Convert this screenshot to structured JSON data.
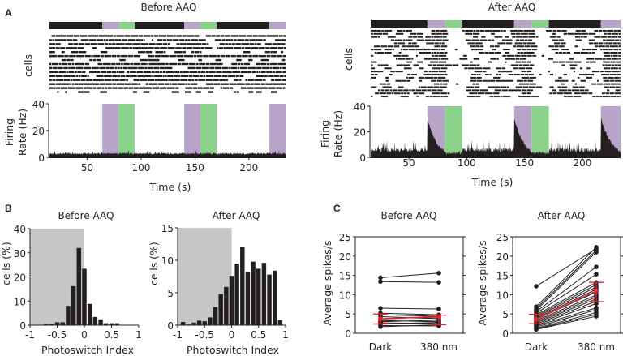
{
  "panel_labels": {
    "a": "A",
    "b": "B",
    "c": "C"
  },
  "colors": {
    "uv": "#b7a4c8",
    "green": "#8bd38b",
    "dark_bar": "#231f20",
    "gray_region": "#c7c7c7",
    "mean_red": "#e8202a",
    "ink": "#231f20"
  },
  "chart_data": [
    {
      "id": "A-before",
      "type": "area",
      "title": "Before AAQ",
      "raster_ylabel": "cells",
      "ylabel": "Firing Rate (Hz)",
      "ylabel_lines": [
        "Firing",
        "Rate (Hz)"
      ],
      "xlabel": "Time (s)",
      "xlim": [
        15,
        234
      ],
      "ylim": [
        0,
        40
      ],
      "xticks": [
        50,
        100,
        150,
        200
      ],
      "yticks": [
        0,
        20,
        40
      ],
      "light_protocol": [
        {
          "state": "dark",
          "start": 15,
          "end": 64
        },
        {
          "state": "380 nm",
          "start": 64,
          "end": 79
        },
        {
          "state": "500 nm",
          "start": 79,
          "end": 94
        },
        {
          "state": "dark",
          "start": 94,
          "end": 140
        },
        {
          "state": "380 nm",
          "start": 140,
          "end": 155
        },
        {
          "state": "500 nm",
          "start": 155,
          "end": 170
        },
        {
          "state": "dark",
          "start": 170,
          "end": 219
        },
        {
          "state": "380 nm",
          "start": 219,
          "end": 234
        }
      ],
      "raster_rows": 15,
      "rate_profile": {
        "baseline_hz": 2.5,
        "noise_hz": 1.5,
        "uv_peak_hz": 0,
        "decay_s": 0
      }
    },
    {
      "id": "A-after",
      "type": "area",
      "title": "After AAQ",
      "raster_ylabel": "cells",
      "ylabel": "Firing Rate (Hz)",
      "ylabel_lines": [
        "Firing",
        "Rate (Hz)"
      ],
      "xlabel": "Time (s)",
      "xlim": [
        17,
        233
      ],
      "ylim": [
        0,
        40
      ],
      "xticks": [
        50,
        100,
        150,
        200
      ],
      "yticks": [
        0,
        20,
        40
      ],
      "light_protocol": [
        {
          "state": "dark",
          "start": 17,
          "end": 66
        },
        {
          "state": "380 nm",
          "start": 66,
          "end": 81
        },
        {
          "state": "500 nm",
          "start": 81,
          "end": 96
        },
        {
          "state": "dark",
          "start": 96,
          "end": 141
        },
        {
          "state": "380 nm",
          "start": 141,
          "end": 156
        },
        {
          "state": "500 nm",
          "start": 156,
          "end": 171
        },
        {
          "state": "dark",
          "start": 171,
          "end": 216
        },
        {
          "state": "380 nm",
          "start": 216,
          "end": 233
        }
      ],
      "raster_rows": 22,
      "rate_profile": {
        "baseline_hz": 5,
        "noise_hz": 4,
        "uv_peak_hz": 31,
        "uv_end_hz": 10,
        "green_hz": 3
      }
    },
    {
      "id": "B-before",
      "type": "bar",
      "title": "Before AAQ",
      "xlabel": "Photoswitch Index",
      "ylabel": "cells (%)",
      "xlim": [
        -1,
        1
      ],
      "ylim": [
        0,
        40
      ],
      "xticks": [
        -1,
        -0.5,
        0,
        0.5,
        1
      ],
      "xtick_labels": [
        "-1",
        "-0.5",
        "0",
        "0.5",
        "1"
      ],
      "yticks": [
        0,
        10,
        20,
        30,
        40
      ],
      "shaded_region": [
        -1,
        0
      ],
      "bin_width": 0.1,
      "bin_centers": [
        -0.7,
        -0.6,
        -0.5,
        -0.4,
        -0.3,
        -0.2,
        -0.1,
        0.0,
        0.1,
        0.2,
        0.3,
        0.4,
        0.5,
        0.6,
        0.7
      ],
      "values": [
        0.4,
        0.4,
        1.2,
        1.2,
        8.0,
        16.2,
        32.0,
        23.4,
        8.8,
        3.4,
        2.4,
        0.8,
        0.8,
        0.8,
        0
      ]
    },
    {
      "id": "B-after",
      "type": "bar",
      "title": "After AAQ",
      "xlabel": "Photoswitch Index",
      "ylabel": "cells (%)",
      "xlim": [
        -1,
        1
      ],
      "ylim": [
        0,
        15
      ],
      "xticks": [
        -1,
        -0.5,
        0,
        0.5,
        1
      ],
      "xtick_labels": [
        "-1",
        "-0.5",
        "0",
        "0.5",
        "1"
      ],
      "yticks": [
        0,
        5,
        10,
        15
      ],
      "shaded_region": [
        -1,
        0
      ],
      "bin_width": 0.1,
      "bin_centers": [
        -0.9,
        -0.8,
        -0.7,
        -0.6,
        -0.5,
        -0.4,
        -0.3,
        -0.2,
        -0.1,
        0.0,
        0.1,
        0.2,
        0.3,
        0.4,
        0.5,
        0.6,
        0.7,
        0.8,
        0.9,
        1.0
      ],
      "values": [
        0.5,
        0.1,
        0.4,
        0.7,
        0.6,
        1.2,
        2.8,
        4.8,
        5.9,
        7.6,
        9.5,
        12.1,
        8.2,
        9.8,
        8.7,
        9.6,
        7.8,
        8.4,
        0.8,
        0
      ],
      "bin_width_last": 0.05
    },
    {
      "id": "C-before",
      "type": "line",
      "title": "Before AAQ",
      "ylabel": "Average spikes/s",
      "categories": [
        "Dark",
        "380 nm"
      ],
      "ylim": [
        0,
        25
      ],
      "yticks": [
        0,
        5,
        10,
        15,
        20,
        25
      ],
      "paired_cells": [
        [
          14.4,
          15.6
        ],
        [
          13.4,
          13.2
        ],
        [
          6.5,
          6.3
        ],
        [
          5.2,
          4.8
        ],
        [
          4.8,
          4.4
        ],
        [
          4.3,
          3.8
        ],
        [
          3.8,
          4.2
        ],
        [
          3.3,
          3.0
        ],
        [
          3.0,
          3.4
        ],
        [
          2.7,
          2.5
        ],
        [
          2.4,
          2.8
        ],
        [
          2.0,
          1.9
        ],
        [
          1.7,
          2.2
        ]
      ],
      "mean": [
        3.7,
        4.4
      ],
      "error_low": [
        2.4,
        2.2
      ],
      "error_high": [
        5.0,
        4.7
      ]
    },
    {
      "id": "C-after",
      "type": "line",
      "title": "After AAQ",
      "ylabel": "Average spikes/s",
      "categories": [
        "Dark",
        "380 nm"
      ],
      "ylim": [
        0,
        25
      ],
      "yticks": [
        0,
        5,
        10,
        15,
        20,
        25
      ],
      "paired_cells": [
        [
          12.2,
          21.9
        ],
        [
          6.9,
          22.3
        ],
        [
          6.4,
          21.5
        ],
        [
          6.0,
          21.0
        ],
        [
          5.6,
          17.2
        ],
        [
          5.2,
          15.3
        ],
        [
          4.8,
          13.2
        ],
        [
          4.5,
          12.6
        ],
        [
          4.2,
          12.0
        ],
        [
          3.9,
          11.4
        ],
        [
          3.6,
          10.7
        ],
        [
          3.3,
          9.9
        ],
        [
          3.0,
          9.4
        ],
        [
          2.7,
          8.9
        ],
        [
          2.4,
          8.3
        ],
        [
          2.1,
          7.7
        ],
        [
          1.9,
          6.6
        ],
        [
          1.6,
          6.1
        ],
        [
          1.3,
          5.4
        ],
        [
          1.1,
          4.9
        ],
        [
          1.0,
          4.4
        ]
      ],
      "mean": [
        3.6,
        11.0
      ],
      "error_low": [
        2.5,
        8.2
      ],
      "error_high": [
        4.9,
        13.2
      ]
    }
  ]
}
